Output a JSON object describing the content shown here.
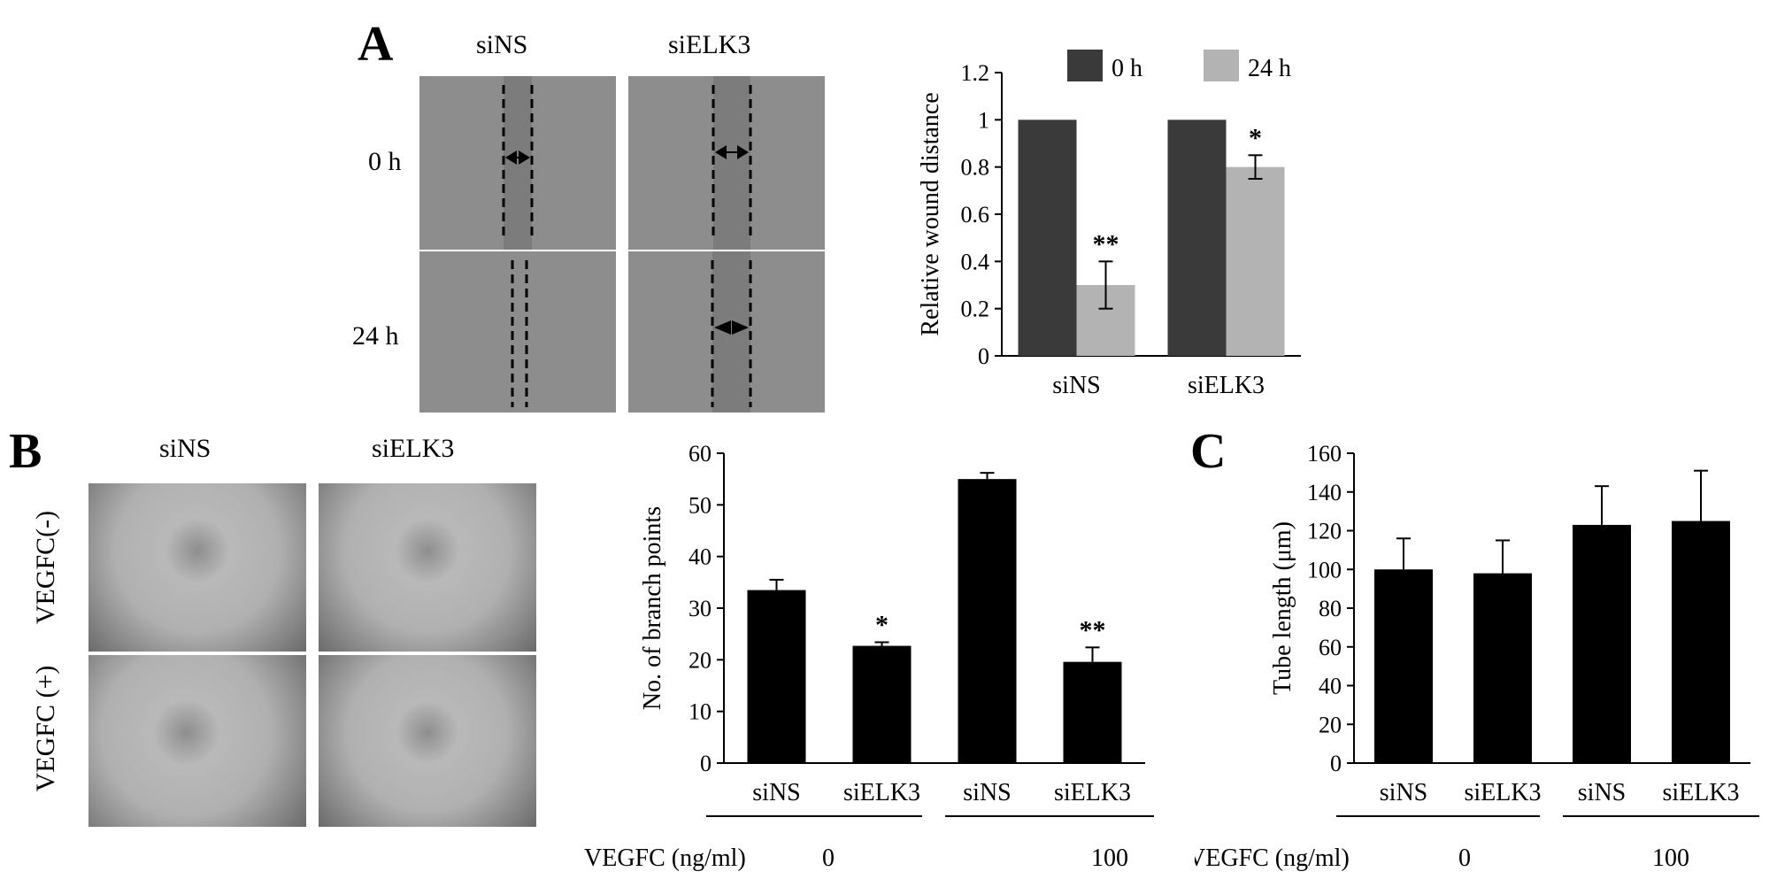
{
  "panels": {
    "a": "A",
    "b": "B",
    "c": "C"
  },
  "panel_a_images": {
    "columns": [
      "siNS",
      "siELK3"
    ],
    "rows": [
      "0 h",
      "24 h"
    ]
  },
  "panel_b_images": {
    "columns": [
      "siNS",
      "siELK3"
    ],
    "rows": [
      "VEGFC(-)",
      "VEGFC (+)"
    ]
  },
  "chart_data": [
    {
      "id": "A",
      "type": "bar",
      "categories": [
        "siNS",
        "siELK3"
      ],
      "series": [
        {
          "name": "0 h",
          "values": [
            1.0,
            1.0
          ],
          "color": "#3a3a3a"
        },
        {
          "name": "24 h",
          "values": [
            0.3,
            0.8
          ],
          "errors": [
            0.1,
            0.05
          ],
          "color": "#b3b3b3"
        }
      ],
      "annotations": [
        "",
        "",
        "**",
        "*"
      ],
      "ylabel": "Relative wound distance",
      "ylim": [
        0,
        1.2
      ],
      "yticks": [
        "0",
        "0.2",
        "0.4",
        "0.6",
        "0.8",
        "1",
        "1.2"
      ],
      "legend_position": "top"
    },
    {
      "id": "B",
      "type": "bar",
      "categories": [
        "siNS",
        "siELK3",
        "siNS",
        "siELK3"
      ],
      "values": [
        33.5,
        22.7,
        55.0,
        19.6
      ],
      "errors": [
        2.0,
        0.7,
        1.2,
        2.8
      ],
      "annotations": [
        "",
        "*",
        "",
        "**"
      ],
      "color": "#000000",
      "ylabel": "No. of branch points",
      "ylim": [
        0,
        60
      ],
      "yticks": [
        "0",
        "10",
        "20",
        "30",
        "40",
        "50",
        "60"
      ],
      "group_label": "VEGFC (ng/ml)",
      "groups": [
        "0",
        "100"
      ]
    },
    {
      "id": "C",
      "type": "bar",
      "categories": [
        "siNS",
        "siELK3",
        "siNS",
        "siELK3"
      ],
      "values": [
        100,
        98,
        123,
        125
      ],
      "errors": [
        16,
        17,
        20,
        26
      ],
      "color": "#000000",
      "ylabel": "Tube length (μm)",
      "ylim": [
        0,
        160
      ],
      "yticks": [
        "0",
        "20",
        "40",
        "60",
        "80",
        "100",
        "120",
        "140",
        "160"
      ],
      "group_label": "VEGFC (ng/ml)",
      "groups": [
        "0",
        "100"
      ]
    }
  ]
}
